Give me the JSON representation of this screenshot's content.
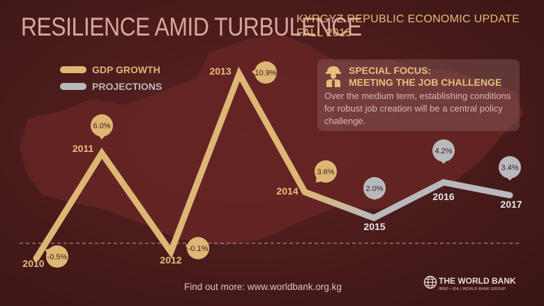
{
  "header": {
    "title": "RESILIENCE AMID TURBULENCE",
    "subtitle_line1": "KYRGYZ REPUBLIC ECONOMIC UPDATE",
    "subtitle_line2": "FALL 2015"
  },
  "legend": [
    {
      "label": "GDP GROWTH",
      "color": "#ddb675"
    },
    {
      "label": "PROJECTIONS",
      "color": "#b9b9bd"
    }
  ],
  "special_focus": {
    "icon": "worker-icon",
    "title_line1": "SPECIAL FOCUS:",
    "title_line2": "MEETING THE JOB CHALLENGE",
    "text": "Over the medium term, establishing conditions for robust job creation will be a central policy challenge."
  },
  "footer": {
    "text": "Find out more: www.worldbank.org.kg"
  },
  "logo": {
    "name": "THE WORLD BANK",
    "sub": "IBRD • IDA | WORLD BANK GROUP"
  },
  "colors": {
    "background": "#4a1c1c",
    "actual": "#ddb675",
    "projection": "#b9b9bd",
    "title": "#d9a79a",
    "accent": "#e6bf7c"
  },
  "chart_data": {
    "type": "line",
    "title": "",
    "xlabel": "",
    "ylabel": "",
    "ylim": [
      -1.2,
      11.6
    ],
    "zero_line": "dashed",
    "x": [
      "2010",
      "2011",
      "2012",
      "2013",
      "2014",
      "2015",
      "2016",
      "2017"
    ],
    "series": [
      {
        "name": "GDP GROWTH",
        "x": [
          "2010",
          "2011",
          "2012",
          "2013",
          "2014"
        ],
        "values": [
          -0.5,
          6.0,
          -0.1,
          10.9,
          3.6
        ]
      },
      {
        "name": "PROJECTIONS",
        "x": [
          "2014",
          "2015",
          "2016",
          "2017"
        ],
        "values": [
          3.6,
          2.0,
          4.2,
          3.4
        ]
      }
    ],
    "data_labels": [
      "-0.5%",
      "6.0%",
      "-0.1%",
      "10.9%",
      "3.6%",
      "2.0%",
      "4.2%",
      "3.4%"
    ]
  }
}
